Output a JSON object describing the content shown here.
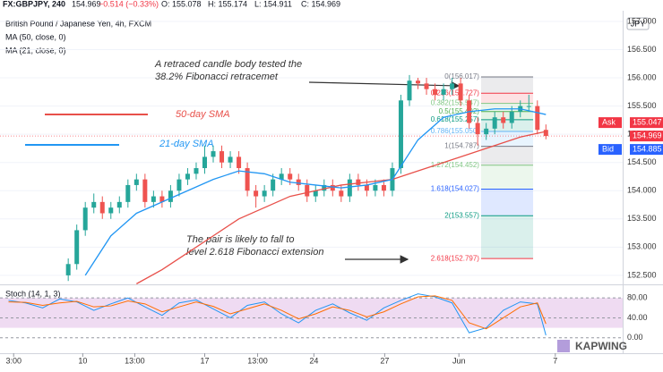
{
  "header": {
    "symbol": "FX:GBPJPY, 240",
    "last": "154.969",
    "change": "−0.514 (−0.33%)",
    "open": "O: 155.078",
    "high": "H: 155.174",
    "low": "L: 154.911",
    "close": "C: 154.969",
    "logo": "KAPWING"
  },
  "chart_data": [
    {
      "type": "candlestick",
      "title": "British Pound / Japanese Yen, 4h, FXCM",
      "currency": "JPY",
      "x": [
        7,
        8,
        9,
        10,
        11,
        12,
        13,
        14,
        15,
        16,
        17,
        18,
        19,
        20,
        21,
        22,
        23,
        24,
        25,
        26,
        27,
        28,
        29,
        30,
        31,
        32,
        33,
        34,
        35,
        36,
        37,
        38,
        39,
        40,
        41,
        42,
        43,
        44,
        45,
        46,
        47,
        48,
        49,
        50,
        51,
        52,
        53,
        54,
        55,
        56,
        57,
        58,
        59,
        60,
        61,
        62,
        63
      ],
      "open": [
        152.5,
        152.7,
        153.3,
        153.7,
        153.8,
        153.6,
        153.7,
        153.8,
        154.1,
        154.2,
        153.8,
        153.9,
        153.8,
        154.0,
        154.2,
        154.3,
        154.4,
        154.6,
        154.7,
        154.5,
        154.6,
        154.4,
        154.0,
        153.9,
        154.0,
        154.2,
        154.3,
        154.2,
        154.1,
        153.9,
        154.0,
        154.1,
        154.0,
        153.9,
        154.2,
        154.1,
        154.0,
        154.1,
        154.0,
        154.4,
        155.6,
        155.95,
        155.9,
        155.8,
        155.7,
        155.8,
        155.9,
        155.6,
        155.2,
        155.0,
        155.1,
        155.3,
        155.2,
        155.4,
        155.5,
        155.5,
        155.078
      ],
      "high": [
        152.8,
        153.4,
        153.8,
        153.95,
        153.9,
        153.8,
        153.9,
        154.2,
        154.3,
        154.3,
        154.0,
        154.0,
        154.1,
        154.3,
        154.4,
        154.5,
        154.8,
        154.8,
        154.8,
        154.7,
        154.7,
        154.5,
        154.1,
        154.1,
        154.3,
        154.4,
        154.4,
        154.3,
        154.2,
        154.1,
        154.2,
        154.2,
        154.1,
        154.3,
        154.3,
        154.2,
        154.2,
        154.2,
        154.5,
        155.7,
        156.05,
        156.0,
        156.0,
        155.9,
        155.9,
        156.0,
        156.0,
        155.7,
        155.3,
        155.2,
        155.4,
        155.4,
        155.5,
        155.6,
        155.7,
        155.6,
        155.174
      ],
      "low": [
        152.4,
        152.6,
        153.2,
        153.6,
        153.5,
        153.5,
        153.6,
        153.7,
        154.0,
        153.7,
        153.7,
        153.7,
        153.7,
        153.9,
        154.1,
        154.2,
        154.3,
        154.5,
        154.4,
        154.4,
        154.3,
        153.9,
        153.7,
        153.8,
        153.9,
        154.1,
        154.1,
        154.0,
        153.8,
        153.8,
        153.9,
        153.9,
        153.8,
        153.8,
        154.0,
        153.9,
        153.9,
        153.9,
        153.9,
        154.3,
        155.5,
        155.8,
        155.7,
        155.6,
        155.6,
        155.7,
        155.5,
        155.1,
        154.8,
        154.9,
        155.0,
        155.1,
        155.1,
        155.3,
        155.4,
        155.0,
        154.911
      ],
      "close": [
        152.7,
        153.3,
        153.7,
        153.8,
        153.6,
        153.7,
        153.8,
        154.1,
        154.2,
        153.8,
        153.9,
        153.8,
        154.0,
        154.2,
        154.3,
        154.4,
        154.6,
        154.7,
        154.5,
        154.6,
        154.4,
        154.0,
        153.9,
        154.0,
        154.2,
        154.3,
        154.2,
        154.1,
        153.9,
        154.0,
        154.1,
        154.0,
        153.9,
        154.2,
        154.1,
        154.0,
        154.1,
        154.0,
        154.4,
        155.6,
        155.95,
        155.9,
        155.8,
        155.7,
        155.8,
        155.9,
        155.6,
        155.2,
        155.0,
        155.1,
        155.3,
        155.2,
        155.4,
        155.5,
        155.5,
        155.078,
        154.969
      ],
      "up_color": "#26a69a",
      "down_color": "#ef5350",
      "series": [
        {
          "name": "MA (50, close, 0)",
          "color": "#e8504a",
          "x": [
            15,
            18,
            21,
            24,
            27,
            30,
            33,
            36,
            39,
            42,
            45,
            48,
            51,
            54,
            57,
            60,
            63
          ],
          "values": [
            152.35,
            152.6,
            152.9,
            153.2,
            153.5,
            153.7,
            153.9,
            154.0,
            154.1,
            154.15,
            154.2,
            154.35,
            154.5,
            154.65,
            154.8,
            154.95,
            155.05
          ]
        },
        {
          "name": "MA (21, close, 0)",
          "color": "#2196f3",
          "x": [
            9,
            12,
            15,
            18,
            21,
            24,
            27,
            30,
            33,
            36,
            39,
            42,
            45,
            48,
            51,
            54,
            57,
            60,
            63
          ],
          "values": [
            152.5,
            153.2,
            153.6,
            153.8,
            154.0,
            154.2,
            154.35,
            154.3,
            154.15,
            154.1,
            154.05,
            154.1,
            154.2,
            154.9,
            155.3,
            155.4,
            155.45,
            155.45,
            155.35
          ]
        }
      ],
      "xlim": [
        -1,
        72
      ],
      "ylim": [
        152.34,
        157.11
      ],
      "yticks": [
        {
          "value": 157,
          "label": "157.000"
        },
        {
          "value": 156.5,
          "label": "156.500"
        },
        {
          "value": 156,
          "label": "156.000"
        },
        {
          "value": 155.5,
          "label": "155.500"
        },
        {
          "value": 155,
          "label": "155.000"
        },
        {
          "value": 154.5,
          "label": "154.500"
        },
        {
          "value": 154,
          "label": "154.000"
        },
        {
          "value": 153.5,
          "label": "153.500"
        },
        {
          "value": 153,
          "label": "153.000"
        },
        {
          "value": 152.5,
          "label": "152.500"
        }
      ],
      "price_labels": [
        {
          "label": "Ask",
          "value": 155.047,
          "color": "#f23645"
        },
        {
          "value": 154.969,
          "color": "#f23645"
        },
        {
          "label": "Bid",
          "value": 154.885,
          "color": "#2962ff"
        }
      ],
      "fib_range": [
        55.4,
        61.5
      ],
      "fib_levels": [
        {
          "label": "0(156.017)",
          "value": 156.017,
          "color": "#787b86"
        },
        {
          "label": "0.236(155.727)",
          "value": 155.727,
          "color": "#f23645"
        },
        {
          "label": "0.382(155.547)",
          "value": 155.547,
          "color": "#81c784"
        },
        {
          "label": "0.5(155.402)",
          "value": 155.402,
          "color": "#4caf50"
        },
        {
          "label": "0.618(155.257)",
          "value": 155.257,
          "color": "#089981"
        },
        {
          "label": "0.786(155.050)",
          "value": 155.05,
          "color": "#64b5f6"
        },
        {
          "label": "1(154.787)",
          "value": 154.787,
          "color": "#787b86"
        },
        {
          "label": "1.272(154.452)",
          "value": 154.452,
          "color": "#81c784"
        },
        {
          "label": "1.618(154.027)",
          "value": 154.027,
          "color": "#2962ff"
        },
        {
          "label": "2(153.557)",
          "value": 153.557,
          "color": "#089981"
        },
        {
          "label": "2.618(152.797)",
          "value": 152.797,
          "color": "#f23645"
        }
      ],
      "annotations": [
        [
          "A retraced candle body tested the",
          "38.2% Fibonacci retracemet"
        ],
        [
          "The pair is likely to fall to",
          "level 2.618 Fibonacci  extension"
        ]
      ],
      "sma_labels": [
        "50-day SMA",
        "21-day SMA"
      ]
    },
    {
      "type": "line",
      "title": "Stoch (14, 1, 3)",
      "x": [
        0,
        2,
        4,
        6,
        8,
        10,
        12,
        14,
        16,
        18,
        20,
        22,
        24,
        26,
        28,
        30,
        32,
        34,
        36,
        38,
        40,
        42,
        44,
        46,
        48,
        50,
        52,
        54,
        56,
        58,
        60,
        62,
        63
      ],
      "series": [
        {
          "color": "#2196f3",
          "values": [
            75,
            70,
            60,
            78,
            72,
            55,
            68,
            80,
            62,
            45,
            70,
            76,
            58,
            40,
            65,
            72,
            48,
            30,
            55,
            68,
            50,
            35,
            60,
            75,
            88,
            82,
            70,
            10,
            20,
            55,
            72,
            68,
            5
          ]
        },
        {
          "color": "#ff6d00",
          "values": [
            72,
            71,
            65,
            70,
            73,
            62,
            64,
            74,
            68,
            52,
            62,
            72,
            63,
            48,
            58,
            68,
            55,
            38,
            48,
            62,
            55,
            42,
            52,
            68,
            82,
            84,
            75,
            30,
            18,
            40,
            62,
            70,
            28
          ]
        }
      ],
      "band": [
        20,
        80
      ],
      "band_color": "#e1bee7",
      "xlim": [
        -1,
        72
      ],
      "ylim": [
        -31,
        103.6
      ],
      "yticks": [
        {
          "value": 80,
          "label": "80.00"
        },
        {
          "value": 40,
          "label": "40.00"
        },
        {
          "value": 0,
          "label": "0.00"
        }
      ],
      "xticks": [
        {
          "value": 0.6,
          "label": "3:00"
        },
        {
          "value": 8.7,
          "label": "10"
        },
        {
          "value": 14.8,
          "label": "13:00"
        },
        {
          "value": 23,
          "label": "17"
        },
        {
          "value": 29.2,
          "label": "13:00"
        },
        {
          "value": 35.8,
          "label": "24"
        },
        {
          "value": 44.1,
          "label": "27"
        },
        {
          "value": 52.8,
          "label": "Jun"
        },
        {
          "value": 64.1,
          "label": "7"
        }
      ]
    }
  ]
}
